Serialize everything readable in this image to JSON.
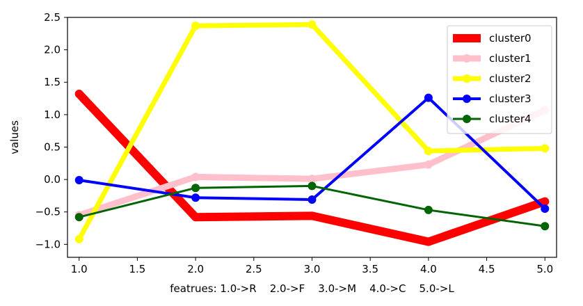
{
  "chart_data": {
    "type": "line",
    "title": "",
    "xlabel": "featrues: 1.0->R    2.0->F    3.0->M    4.0->C    5.0->L",
    "ylabel": "values",
    "x": [
      1.0,
      2.0,
      3.0,
      4.0,
      5.0
    ],
    "xlim": [
      0.9,
      5.1
    ],
    "ylim": [
      -1.2,
      2.5
    ],
    "xticks": [
      1.0,
      1.5,
      2.0,
      2.5,
      3.0,
      3.5,
      4.0,
      4.5,
      5.0
    ],
    "xtick_labels": [
      "1.0",
      "1.5",
      "2.0",
      "2.5",
      "3.0",
      "3.5",
      "4.0",
      "4.5",
      "5.0"
    ],
    "yticks": [
      -1.0,
      -0.5,
      0.0,
      0.5,
      1.0,
      1.5,
      2.0,
      2.5
    ],
    "ytick_labels": [
      "−1.0",
      "−0.5",
      "0.0",
      "0.5",
      "1.0",
      "1.5",
      "2.0",
      "2.5"
    ],
    "grid": false,
    "legend_position": "top-right",
    "series": [
      {
        "name": "cluster0",
        "color": "#ff0000",
        "values": [
          1.32,
          -0.58,
          -0.56,
          -0.96,
          -0.34
        ]
      },
      {
        "name": "cluster1",
        "color": "#ffc0cb",
        "values": [
          -0.55,
          0.04,
          0.01,
          0.23,
          1.07
        ]
      },
      {
        "name": "cluster2",
        "color": "#ffff00",
        "values": [
          -0.92,
          2.37,
          2.39,
          0.44,
          0.48
        ]
      },
      {
        "name": "cluster3",
        "color": "#0000ff",
        "values": [
          -0.01,
          -0.28,
          -0.31,
          1.26,
          -0.45
        ]
      },
      {
        "name": "cluster4",
        "color": "#006400",
        "values": [
          -0.58,
          -0.13,
          -0.1,
          -0.47,
          -0.72
        ]
      }
    ]
  }
}
